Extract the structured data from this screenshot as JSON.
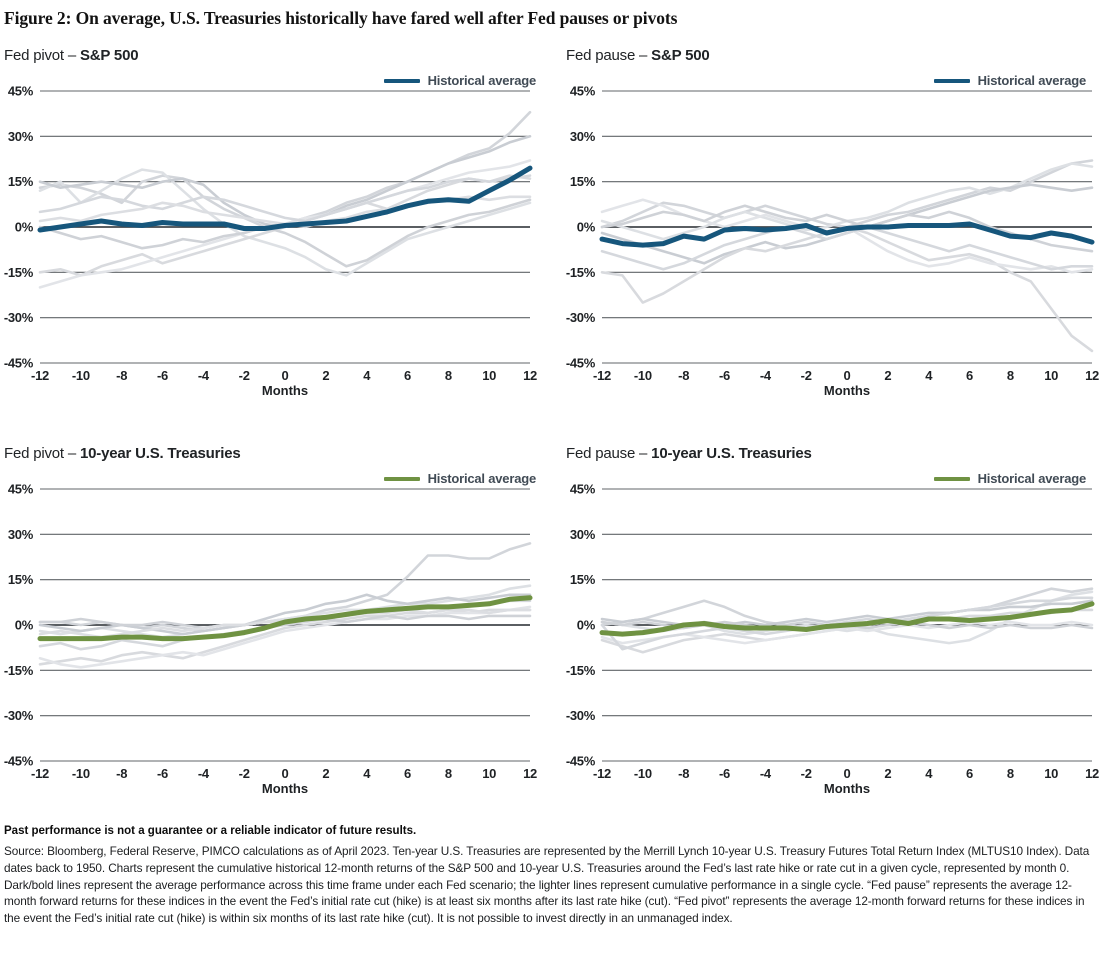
{
  "figure": {
    "title": "Figure 2: On average, U.S. Treasuries historically have fared well after Fed pauses or pivots",
    "footnote_bold": "Past performance is not a guarantee or a reliable indicator of future results.",
    "footnote": "Source: Bloomberg, Federal Reserve, PIMCO calculations as of April 2023. Ten-year U.S. Treasuries are represented by the Merrill Lynch 10-year U.S. Treasury Futures Total Return Index (MLTUS10 Index). Data dates back to 1950. Charts represent the cumulative historical 12-month returns of the S&P 500 and 10-year U.S. Treasuries around the Fed’s last rate hike or rate cut in a given cycle, represented by month 0. Dark/bold lines represent the average performance across this time frame under each Fed scenario; the lighter lines represent cumulative performance in a single cycle. “Fed pause” represents the average 12-month forward returns for these indices in the event the Fed’s initial rate cut (hike) is at least six months after its last rate hike (cut). “Fed pivot” represents the average 12-month forward returns for these indices in the event the Fed’s initial rate cut (hike) is within six months of its last rate hike (cut). It is not possible to invest directly in an unmanaged index."
  },
  "axis": {
    "xlabel": "Months",
    "xlim": [
      -12,
      12
    ],
    "ylim": [
      -45,
      45
    ],
    "xticks": [
      -12,
      -10,
      -8,
      -6,
      -4,
      -2,
      0,
      2,
      4,
      6,
      8,
      10,
      12
    ],
    "ytick_values": [
      45,
      30,
      15,
      0,
      -15,
      -30,
      -45
    ],
    "ytick_labels": [
      "45%",
      "30%",
      "15%",
      "0%",
      "-15%",
      "-30%",
      "-45%"
    ],
    "grid": true
  },
  "colors": {
    "average_blue": "#16567c",
    "average_green": "#6f9242",
    "gridline": "#606468",
    "zeroline": "#43474c",
    "cycle_grays": [
      "#d2d5da",
      "#dde0e4",
      "#c9cdd3",
      "#d8dade",
      "#e2e4e8",
      "#cfd2d7",
      "#d5d8dd",
      "#dcdee2"
    ]
  },
  "chart_data": [
    {
      "type": "line",
      "title": "Fed pivot – S&P 500",
      "title_prefix": "Fed pivot – ",
      "title_asset": "S&P 500",
      "legend": "Historical average",
      "color": "#16567c",
      "xlabel": "Months",
      "ylim": [
        -45,
        45
      ],
      "x": [
        -12,
        -11,
        -10,
        -9,
        -8,
        -7,
        -6,
        -5,
        -4,
        -3,
        -2,
        -1,
        0,
        1,
        2,
        3,
        4,
        5,
        6,
        7,
        8,
        9,
        10,
        11,
        12
      ],
      "average": [
        -1,
        0,
        1,
        2,
        1,
        0.5,
        1.5,
        1,
        1,
        1,
        -0.5,
        -0.5,
        0.5,
        1,
        1.5,
        2,
        3.5,
        5,
        7,
        8.5,
        9,
        8.5,
        12,
        15.5,
        19.5
      ],
      "cycles": [
        {
          "values": [
            13,
            14,
            13,
            11,
            8,
            15,
            17,
            16,
            10,
            6,
            3,
            0,
            1,
            3,
            5,
            8,
            10,
            13,
            15,
            18,
            21,
            24,
            26,
            31,
            38
          ]
        },
        {
          "values": [
            12,
            15,
            8,
            12,
            16,
            19,
            18,
            12,
            6,
            1,
            -3,
            -5,
            -7,
            -10,
            -14,
            -16,
            -12,
            -8,
            -4,
            -2,
            0,
            2,
            4,
            6,
            8
          ]
        },
        {
          "values": [
            15,
            13,
            14,
            15,
            14,
            13,
            15,
            16,
            14,
            8,
            4,
            1,
            0,
            2,
            4,
            7,
            9,
            12,
            15,
            18,
            21,
            23,
            25,
            28,
            30
          ]
        },
        {
          "values": [
            -15,
            -14,
            -16,
            -13,
            -11,
            -9,
            -12,
            -10,
            -8,
            -6,
            -4,
            -2,
            0,
            2,
            4,
            6,
            8,
            6,
            9,
            12,
            14,
            16,
            15,
            17,
            16
          ]
        },
        {
          "values": [
            -20,
            -18,
            -16,
            -15,
            -14,
            -12,
            -10,
            -8,
            -6,
            -4,
            -2,
            0,
            1,
            3,
            4,
            6,
            8,
            10,
            12,
            14,
            16,
            18,
            19,
            20,
            22
          ]
        },
        {
          "values": [
            0,
            -2,
            -4,
            -3,
            -5,
            -7,
            -6,
            -4,
            -5,
            -3,
            -2,
            0,
            -2,
            -5,
            -9,
            -13,
            -11,
            -7,
            -3,
            0,
            2,
            4,
            5,
            7,
            9
          ]
        },
        {
          "values": [
            5,
            6,
            8,
            10,
            9,
            7,
            6,
            8,
            10,
            9,
            7,
            5,
            3,
            2,
            4,
            6,
            8,
            10,
            12,
            13,
            15,
            16,
            15,
            16,
            17
          ]
        },
        {
          "values": [
            2,
            3,
            2,
            4,
            5,
            6,
            8,
            7,
            5,
            4,
            3,
            2,
            1,
            0,
            2,
            3,
            5,
            6,
            7,
            8,
            9,
            10,
            9,
            10,
            10
          ]
        }
      ]
    },
    {
      "type": "line",
      "title": "Fed pause – S&P 500",
      "title_prefix": "Fed pause – ",
      "title_asset": "S&P 500",
      "legend": "Historical average",
      "color": "#16567c",
      "xlabel": "Months",
      "ylim": [
        -45,
        45
      ],
      "x": [
        -12,
        -11,
        -10,
        -9,
        -8,
        -7,
        -6,
        -5,
        -4,
        -3,
        -2,
        -1,
        0,
        1,
        2,
        3,
        4,
        5,
        6,
        7,
        8,
        9,
        10,
        11,
        12
      ],
      "average": [
        -4,
        -5.5,
        -6,
        -5.5,
        -3,
        -4,
        -1,
        -0.5,
        -1,
        -0.5,
        0.5,
        -2,
        -0.5,
        0,
        0,
        0.5,
        0.5,
        0.5,
        1,
        -1,
        -3,
        -3.5,
        -2,
        -3,
        -5
      ],
      "cycles": [
        {
          "values": [
            0,
            2,
            5,
            8,
            7,
            5,
            3,
            5,
            7,
            5,
            3,
            1,
            0,
            2,
            4,
            5,
            7,
            9,
            11,
            13,
            12,
            15,
            18,
            21,
            22
          ]
        },
        {
          "values": [
            2,
            0,
            -2,
            -4,
            -2,
            0,
            3,
            5,
            3,
            1,
            -1,
            0,
            2,
            3,
            5,
            8,
            10,
            12,
            13,
            11,
            13,
            16,
            19,
            21,
            20
          ]
        },
        {
          "values": [
            -2,
            -4,
            -6,
            -8,
            -10,
            -12,
            -9,
            -7,
            -5,
            -7,
            -6,
            -4,
            -2,
            0,
            2,
            4,
            6,
            8,
            10,
            12,
            13,
            14,
            13,
            12,
            13
          ]
        },
        {
          "values": [
            -15,
            -16,
            -25,
            -22,
            -18,
            -14,
            -10,
            -7,
            -8,
            -6,
            -4,
            -2,
            0,
            -2,
            -5,
            -8,
            -11,
            -10,
            -9,
            -11,
            -15,
            -18,
            -27,
            -36,
            -41
          ]
        },
        {
          "values": [
            5,
            7,
            9,
            7,
            4,
            2,
            0,
            2,
            4,
            2,
            0,
            -2,
            0,
            -4,
            -8,
            -11,
            -13,
            -12,
            -10,
            -12,
            -13,
            -14,
            -13,
            -15,
            -14
          ]
        },
        {
          "values": [
            0,
            1,
            3,
            5,
            4,
            2,
            5,
            7,
            5,
            3,
            2,
            4,
            2,
            0,
            2,
            4,
            3,
            5,
            3,
            0,
            -2,
            -4,
            -6,
            -7,
            -8
          ]
        },
        {
          "values": [
            -8,
            -10,
            -12,
            -14,
            -12,
            -9,
            -6,
            -4,
            -2,
            0,
            -2,
            -4,
            -2,
            0,
            -2,
            -4,
            -6,
            -8,
            -6,
            -8,
            -10,
            -12,
            -14,
            -13,
            -13
          ]
        }
      ]
    },
    {
      "type": "line",
      "title": "Fed pivot – 10-year U.S. Treasuries",
      "title_prefix": "Fed pivot – ",
      "title_asset": "10-year U.S. Treasuries",
      "legend": "Historical average",
      "color": "#6f9242",
      "xlabel": "Months",
      "ylim": [
        -45,
        45
      ],
      "x": [
        -12,
        -11,
        -10,
        -9,
        -8,
        -7,
        -6,
        -5,
        -4,
        -3,
        -2,
        -1,
        0,
        1,
        2,
        3,
        4,
        5,
        6,
        7,
        8,
        9,
        10,
        11,
        12
      ],
      "average": [
        -4.5,
        -4.5,
        -4.5,
        -4.5,
        -4,
        -4,
        -4.5,
        -4.5,
        -4,
        -3.5,
        -2.5,
        -1,
        1,
        2,
        2.5,
        3.5,
        4.5,
        5,
        5.5,
        6,
        6,
        6.5,
        7,
        8.5,
        9
      ],
      "cycles": [
        {
          "values": [
            1,
            1,
            0,
            1,
            0,
            -1,
            0,
            -1,
            -2,
            -1,
            0,
            1,
            2,
            3,
            5,
            6,
            8,
            10,
            16,
            23,
            23,
            22,
            22,
            25,
            27
          ]
        },
        {
          "values": [
            -2,
            -3,
            -2,
            -1,
            -2,
            -3,
            -4,
            -3,
            -2,
            -1,
            0,
            1,
            2,
            3,
            4,
            5,
            5,
            6,
            7,
            7,
            8,
            9,
            10,
            12,
            13
          ]
        },
        {
          "values": [
            0,
            -1,
            -2,
            -1,
            0,
            -1,
            -2,
            -3,
            -2,
            -1,
            0,
            2,
            4,
            5,
            7,
            8,
            10,
            8,
            7,
            8,
            9,
            8,
            9,
            10,
            10
          ]
        },
        {
          "values": [
            -13,
            -12,
            -11,
            -12,
            -10,
            -9,
            -10,
            -11,
            -9,
            -7,
            -5,
            -3,
            -1,
            0,
            1,
            2,
            3,
            3,
            4,
            4,
            5,
            4,
            5,
            5,
            5
          ]
        },
        {
          "values": [
            -11,
            -13,
            -14,
            -13,
            -12,
            -11,
            -10,
            -9,
            -10,
            -8,
            -6,
            -4,
            -2,
            -1,
            0,
            1,
            2,
            2,
            3,
            3,
            4,
            4,
            4,
            5,
            6
          ]
        },
        {
          "values": [
            1,
            1,
            2,
            1,
            0,
            0,
            1,
            0,
            -1,
            0,
            0,
            1,
            1,
            2,
            2,
            1,
            2,
            3,
            2,
            3,
            3,
            2,
            3,
            3,
            3
          ]
        },
        {
          "values": [
            -7,
            -6,
            -8,
            -7,
            -5,
            -6,
            -7,
            -5,
            -4,
            -3,
            -2,
            -1,
            0,
            1,
            2,
            3,
            4,
            5,
            5,
            6,
            6,
            7,
            7,
            8,
            8
          ]
        },
        {
          "values": [
            -3,
            -2,
            -3,
            -4,
            -3,
            -2,
            -1,
            -2,
            -1,
            0,
            0,
            1,
            1,
            2,
            3,
            3,
            4,
            4,
            5,
            4,
            5,
            5,
            4,
            5,
            5
          ]
        }
      ]
    },
    {
      "type": "line",
      "title": "Fed pause – 10-year U.S. Treasuries",
      "title_prefix": "Fed pause – ",
      "title_asset": "10-year U.S. Treasuries",
      "legend": "Historical average",
      "color": "#6f9242",
      "xlabel": "Months",
      "ylim": [
        -45,
        45
      ],
      "x": [
        -12,
        -11,
        -10,
        -9,
        -8,
        -7,
        -6,
        -5,
        -4,
        -3,
        -2,
        -1,
        0,
        1,
        2,
        3,
        4,
        5,
        6,
        7,
        8,
        9,
        10,
        11,
        12
      ],
      "average": [
        -2.5,
        -3,
        -2.5,
        -1.5,
        0,
        0.5,
        -0.5,
        -1,
        -1,
        -1,
        -1.5,
        -0.5,
        0,
        0.5,
        1.5,
        0.5,
        2,
        2,
        1.5,
        2,
        2.5,
        3.5,
        4.5,
        5,
        7
      ],
      "cycles": [
        {
          "values": [
            0,
            1,
            2,
            4,
            6,
            8,
            6,
            3,
            1,
            0,
            -1,
            0,
            1,
            0,
            1,
            2,
            3,
            4,
            5,
            6,
            8,
            10,
            12,
            11,
            12
          ]
        },
        {
          "values": [
            1,
            0,
            -1,
            -2,
            -1,
            0,
            -2,
            -3,
            -2,
            -1,
            0,
            -1,
            -2,
            -1,
            -3,
            -4,
            -5,
            -6,
            -5,
            -2,
            2,
            5,
            8,
            10,
            11
          ]
        },
        {
          "values": [
            2,
            1,
            2,
            1,
            0,
            1,
            0,
            1,
            0,
            1,
            2,
            1,
            2,
            3,
            2,
            3,
            4,
            4,
            5,
            5,
            6,
            6,
            7,
            7,
            8
          ]
        },
        {
          "values": [
            -5,
            -7,
            -9,
            -7,
            -5,
            -4,
            -3,
            -4,
            -5,
            -4,
            -3,
            -2,
            -1,
            0,
            1,
            1,
            2,
            2,
            3,
            3,
            4,
            4,
            4,
            5,
            5
          ]
        },
        {
          "values": [
            -4,
            -6,
            -5,
            -4,
            -3,
            -4,
            -5,
            -6,
            -5,
            -4,
            -3,
            -2,
            -1,
            -2,
            -1,
            0,
            -1,
            0,
            1,
            0,
            1,
            0,
            0,
            1,
            0
          ]
        },
        {
          "values": [
            1,
            0,
            1,
            0,
            -1,
            0,
            1,
            0,
            -1,
            0,
            1,
            0,
            0,
            -1,
            0,
            1,
            0,
            -1,
            0,
            -1,
            0,
            -1,
            -1,
            0,
            -1
          ]
        },
        {
          "values": [
            0,
            -8,
            -6,
            -4,
            -3,
            -2,
            -1,
            -2,
            -3,
            -2,
            -1,
            0,
            1,
            2,
            1,
            2,
            3,
            4,
            5,
            6,
            7,
            8,
            8,
            9,
            9
          ]
        }
      ]
    }
  ]
}
